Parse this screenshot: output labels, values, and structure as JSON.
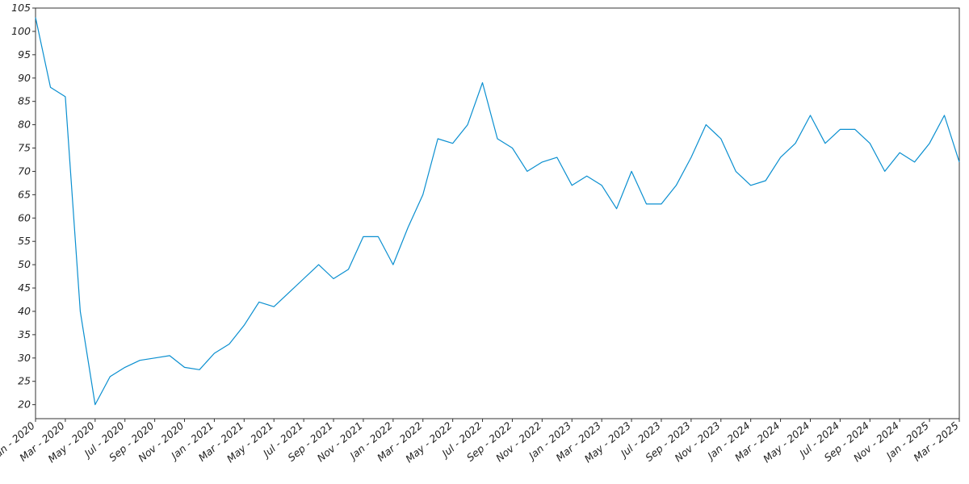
{
  "chart_data": {
    "type": "line",
    "x": [
      "2020-01",
      "2020-02",
      "2020-03",
      "2020-04",
      "2020-05",
      "2020-06",
      "2020-07",
      "2020-08",
      "2020-09",
      "2020-10",
      "2020-11",
      "2020-12",
      "2021-01",
      "2021-02",
      "2021-03",
      "2021-04",
      "2021-05",
      "2021-06",
      "2021-07",
      "2021-08",
      "2021-09",
      "2021-10",
      "2021-11",
      "2021-12",
      "2022-01",
      "2022-02",
      "2022-03",
      "2022-04",
      "2022-05",
      "2022-06",
      "2022-07",
      "2022-08",
      "2022-09",
      "2022-10",
      "2022-11",
      "2022-12",
      "2023-01",
      "2023-02",
      "2023-03",
      "2023-04",
      "2023-05",
      "2023-06",
      "2023-07",
      "2023-08",
      "2023-09",
      "2023-10",
      "2023-11",
      "2023-12",
      "2024-01",
      "2024-02",
      "2024-03",
      "2024-04",
      "2024-05",
      "2024-06",
      "2024-07",
      "2024-08",
      "2024-09",
      "2024-10",
      "2024-11",
      "2024-12",
      "2025-01",
      "2025-02",
      "2025-03"
    ],
    "values": [
      103,
      88,
      86,
      40,
      20,
      26,
      28,
      29.5,
      30,
      30.5,
      28,
      27.5,
      31,
      33,
      37,
      42,
      41,
      44,
      47,
      50,
      47,
      49,
      56,
      56,
      50,
      58,
      65,
      77,
      76,
      80,
      89,
      77,
      75,
      70,
      72,
      73,
      67,
      69,
      67,
      62,
      70,
      63,
      63,
      67,
      73,
      80,
      77,
      70,
      67,
      68,
      73,
      76,
      82,
      76,
      79,
      79,
      76,
      70,
      74,
      72,
      76,
      82,
      72
    ],
    "color": "#0a8fd0",
    "xlim": [
      "2020-01",
      "2025-03"
    ],
    "xticks": [
      {
        "value": "2020-01",
        "label": "Jan - 2020"
      },
      {
        "value": "2020-03",
        "label": "Mar - 2020"
      },
      {
        "value": "2020-05",
        "label": "May - 2020"
      },
      {
        "value": "2020-07",
        "label": "Jul - 2020"
      },
      {
        "value": "2020-09",
        "label": "Sep - 2020"
      },
      {
        "value": "2020-11",
        "label": "Nov - 2020"
      },
      {
        "value": "2021-01",
        "label": "Jan - 2021"
      },
      {
        "value": "2021-03",
        "label": "Mar - 2021"
      },
      {
        "value": "2021-05",
        "label": "May - 2021"
      },
      {
        "value": "2021-07",
        "label": "Jul - 2021"
      },
      {
        "value": "2021-09",
        "label": "Sep - 2021"
      },
      {
        "value": "2021-11",
        "label": "Nov - 2021"
      },
      {
        "value": "2022-01",
        "label": "Jan - 2022"
      },
      {
        "value": "2022-03",
        "label": "Mar - 2022"
      },
      {
        "value": "2022-05",
        "label": "May - 2022"
      },
      {
        "value": "2022-07",
        "label": "Jul - 2022"
      },
      {
        "value": "2022-09",
        "label": "Sep - 2022"
      },
      {
        "value": "2022-11",
        "label": "Nov - 2022"
      },
      {
        "value": "2023-01",
        "label": "Jan - 2023"
      },
      {
        "value": "2023-03",
        "label": "Mar - 2023"
      },
      {
        "value": "2023-05",
        "label": "May - 2023"
      },
      {
        "value": "2023-07",
        "label": "Jul - 2023"
      },
      {
        "value": "2023-09",
        "label": "Sep - 2023"
      },
      {
        "value": "2023-11",
        "label": "Nov - 2023"
      },
      {
        "value": "2024-01",
        "label": "Jan - 2024"
      },
      {
        "value": "2024-03",
        "label": "Mar - 2024"
      },
      {
        "value": "2024-05",
        "label": "May - 2024"
      },
      {
        "value": "2024-07",
        "label": "Jul - 2024"
      },
      {
        "value": "2024-09",
        "label": "Sep - 2024"
      },
      {
        "value": "2024-11",
        "label": "Nov - 2024"
      },
      {
        "value": "2025-01",
        "label": "Jan - 2025"
      },
      {
        "value": "2025-03",
        "label": "Mar - 2025"
      }
    ],
    "ylim": [
      17,
      105
    ],
    "yticks": [
      20,
      25,
      30,
      35,
      40,
      45,
      50,
      55,
      60,
      65,
      70,
      75,
      80,
      85,
      90,
      95,
      100,
      105
    ]
  }
}
